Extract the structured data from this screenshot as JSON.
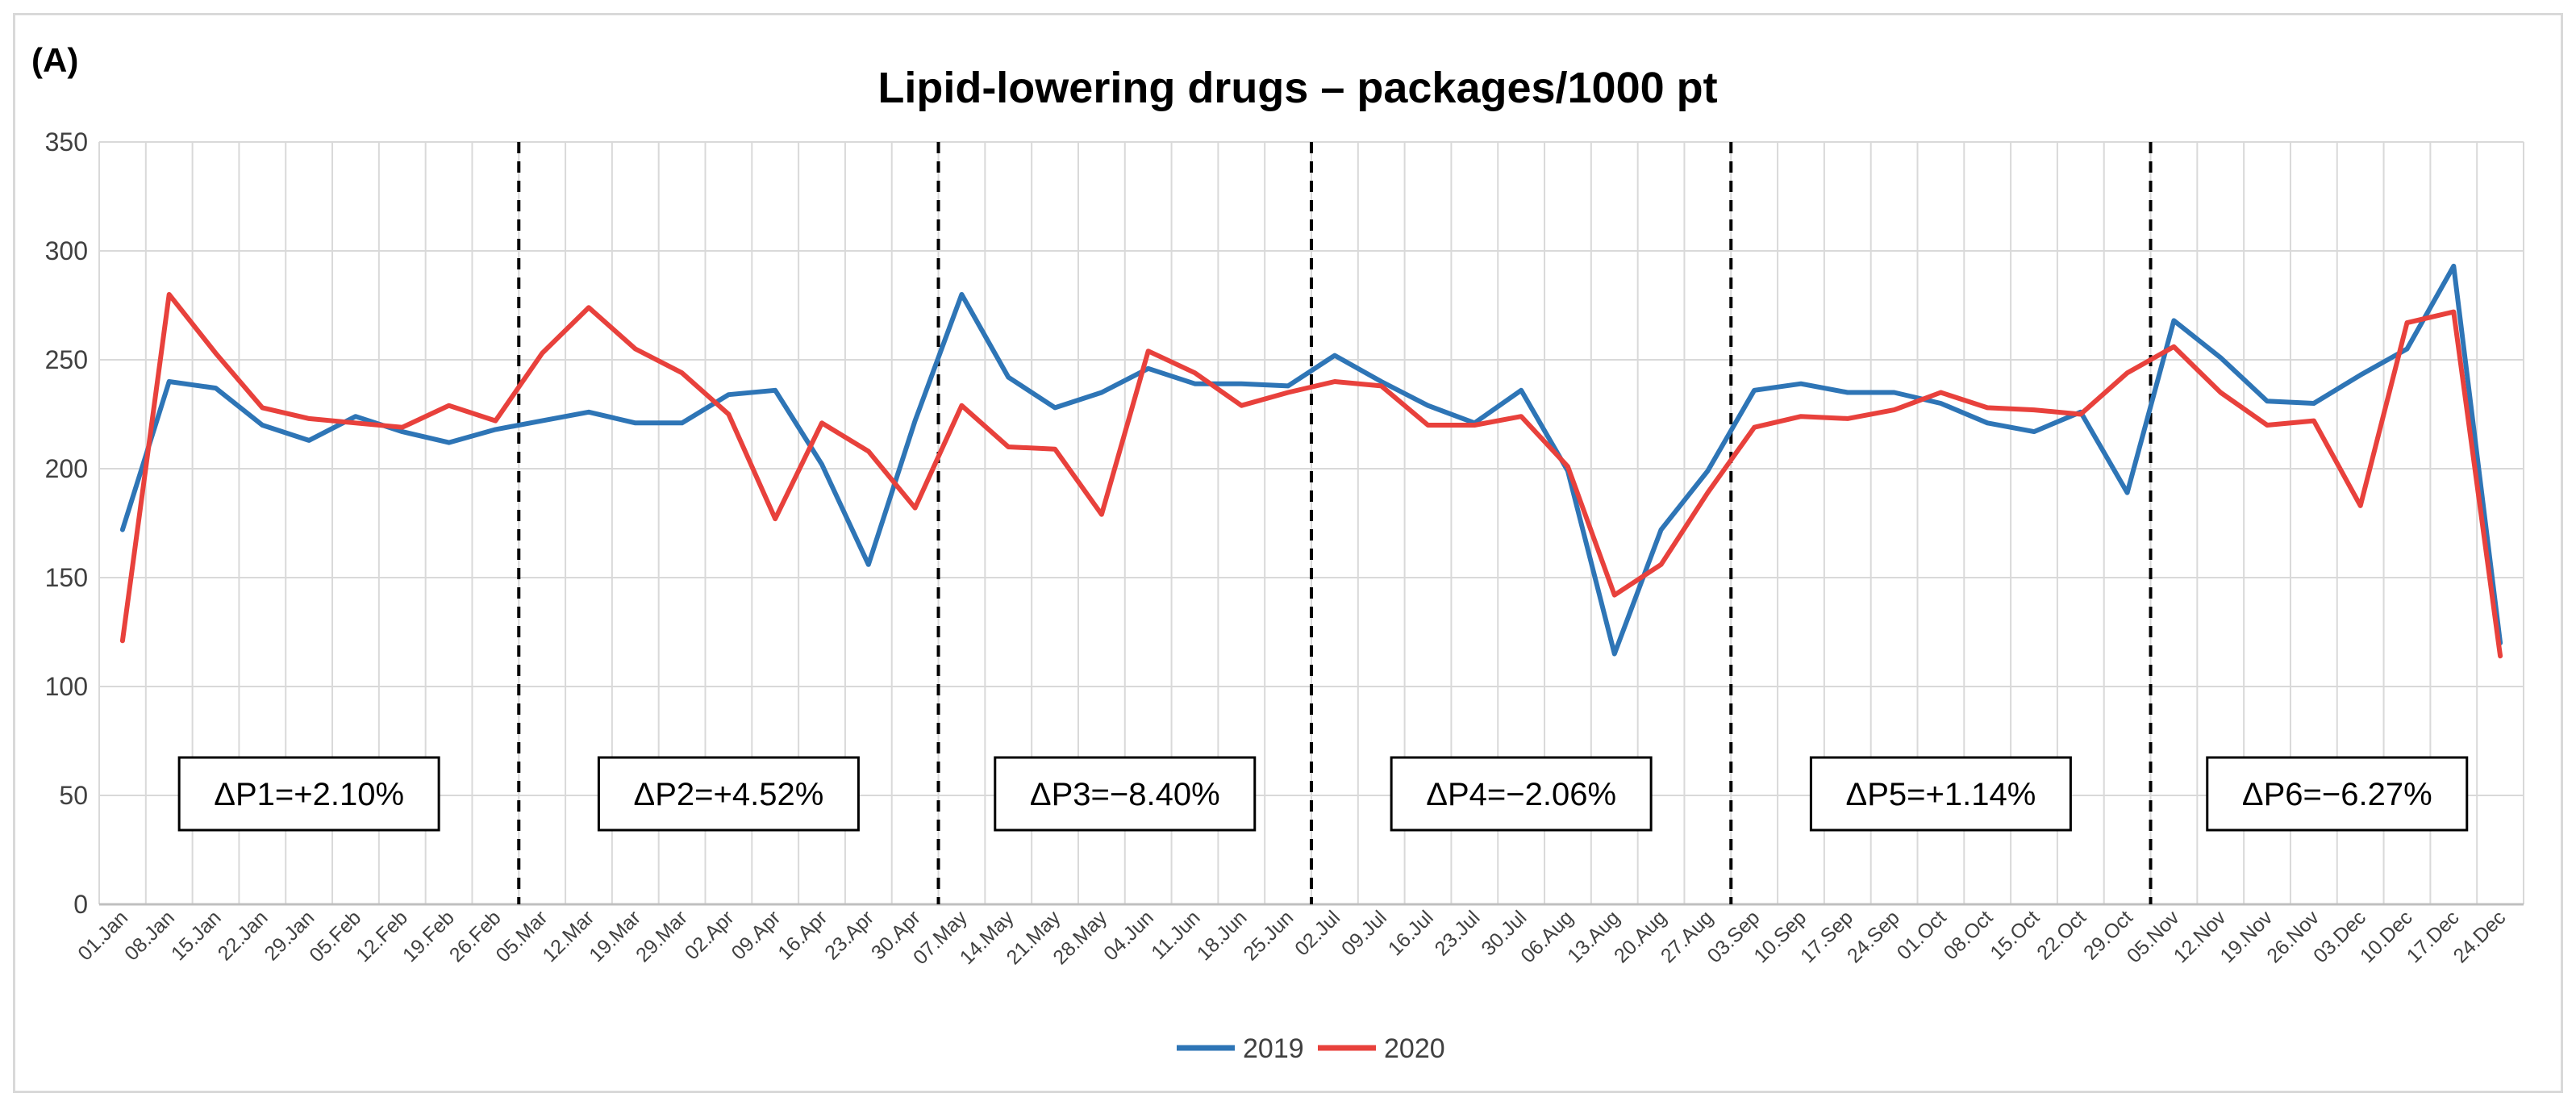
{
  "chart_data": {
    "type": "line",
    "panel_label": "(A)",
    "title": "Lipid-lowering drugs – packages/1000 pt",
    "xlabel": "",
    "ylabel": "",
    "ylim": [
      0,
      350
    ],
    "yticks": [
      0,
      50,
      100,
      150,
      200,
      250,
      300,
      350
    ],
    "grid": true,
    "legend_position": "bottom-center",
    "categories": [
      "01.Jan",
      "08.Jan",
      "15.Jan",
      "22.Jan",
      "29.Jan",
      "05.Feb",
      "12.Feb",
      "19.Feb",
      "26.Feb",
      "05.Mar",
      "12.Mar",
      "19.Mar",
      "29.Mar",
      "02.Apr",
      "09.Apr",
      "16.Apr",
      "23.Apr",
      "30.Apr",
      "07.May",
      "14.May",
      "21.May",
      "28.May",
      "04.Jun",
      "11.Jun",
      "18.Jun",
      "25.Jun",
      "02.Jul",
      "09.Jul",
      "16.Jul",
      "23.Jul",
      "30.Jul",
      "06.Aug",
      "13.Aug",
      "20.Aug",
      "27.Aug",
      "03.Sep",
      "10.Sep",
      "17.Sep",
      "24.Sep",
      "01.Oct",
      "08.Oct",
      "15.Oct",
      "22.Oct",
      "29.Oct",
      "05.Nov",
      "12.Nov",
      "19.Nov",
      "26.Nov",
      "03.Dec",
      "10.Dec",
      "17.Dec",
      "24.Dec"
    ],
    "series": [
      {
        "name": "2019",
        "color": "#2e75b6",
        "values": [
          172,
          240,
          237,
          220,
          213,
          224,
          217,
          212,
          218,
          222,
          226,
          221,
          221,
          234,
          236,
          202,
          156,
          222,
          280,
          242,
          228,
          235,
          246,
          239,
          239,
          238,
          252,
          240,
          229,
          221,
          236,
          199,
          115,
          172,
          199,
          236,
          239,
          235,
          235,
          230,
          221,
          217,
          226,
          189,
          268,
          251,
          231,
          230,
          243,
          255,
          293,
          120
        ]
      },
      {
        "name": "2020",
        "color": "#e8413c",
        "values": [
          121,
          280,
          253,
          228,
          223,
          221,
          219,
          229,
          222,
          253,
          274,
          255,
          244,
          225,
          177,
          221,
          208,
          182,
          229,
          210,
          209,
          179,
          254,
          244,
          229,
          235,
          240,
          238,
          220,
          220,
          224,
          201,
          142,
          156,
          189,
          219,
          224,
          223,
          227,
          235,
          228,
          227,
          225,
          244,
          256,
          235,
          220,
          222,
          183,
          267,
          272,
          114
        ]
      }
    ],
    "period_dividers_after_category": [
      "26.Feb",
      "30.Apr",
      "25.Jun",
      "27.Aug",
      "29.Oct"
    ],
    "annotations": [
      {
        "period": 1,
        "text": "ΔP1=+2.10%"
      },
      {
        "period": 2,
        "text": "ΔP2=+4.52%"
      },
      {
        "period": 3,
        "text": "ΔP3=−8.40%"
      },
      {
        "period": 4,
        "text": "ΔP4=−2.06%"
      },
      {
        "period": 5,
        "text": "ΔP5=+1.14%"
      },
      {
        "period": 6,
        "text": "ΔP6=−6.27%"
      }
    ],
    "gridline_color": "#d9d9d9",
    "axis_color": "#bfbfbf"
  }
}
